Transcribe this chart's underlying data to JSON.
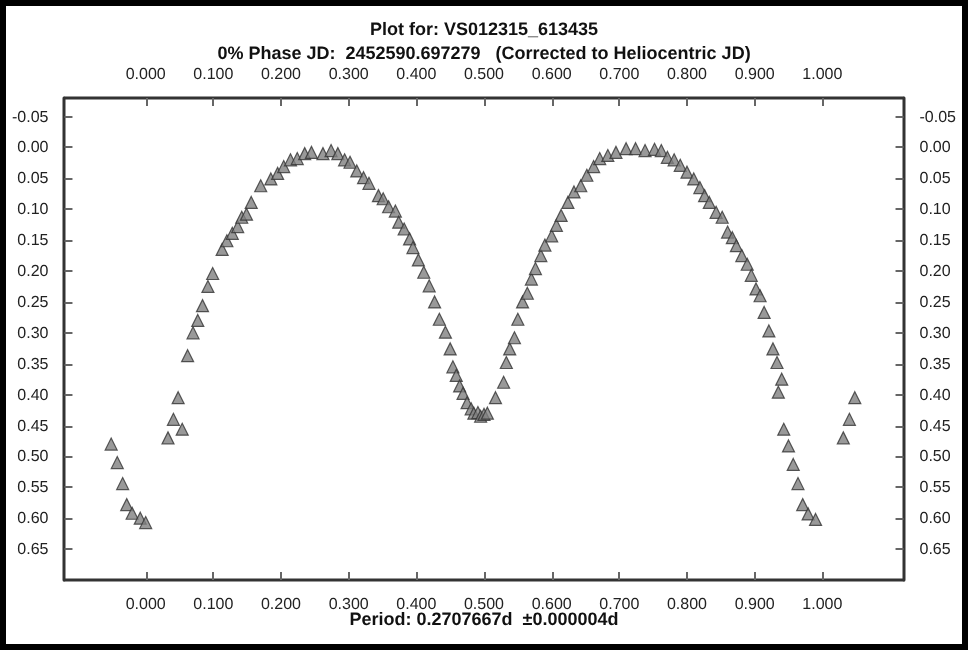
{
  "chart_data": {
    "type": "scatter",
    "title": "Plot for: VS012315_613435",
    "subtitle": "0% Phase JD:  2452590.697279   (Corrected to Heliocentric JD)",
    "annotations": [
      "Period: 0.2707667d  ±0.000004d"
    ],
    "marker": "triangle",
    "series": [
      {
        "color": "#808080",
        "x": [
          -0.051,
          -0.042,
          -0.034,
          -0.028,
          -0.02,
          -0.008,
          0.0,
          0.033,
          0.041,
          0.048,
          0.054,
          0.062,
          0.07,
          0.077,
          0.084,
          0.092,
          0.099,
          0.113,
          0.12,
          0.128,
          0.136,
          0.142,
          0.149,
          0.156,
          0.17,
          0.185,
          0.195,
          0.204,
          0.214,
          0.224,
          0.235,
          0.245,
          0.262,
          0.274,
          0.284,
          0.294,
          0.302,
          0.312,
          0.322,
          0.33,
          0.344,
          0.351,
          0.359,
          0.369,
          0.374,
          0.382,
          0.39,
          0.395,
          0.403,
          0.411,
          0.419,
          0.427,
          0.434,
          0.443,
          0.45,
          0.454,
          0.459,
          0.464,
          0.469,
          0.475,
          0.481,
          0.485,
          0.491,
          0.495,
          0.5,
          0.505,
          0.517,
          0.529,
          0.533,
          0.538,
          0.545,
          0.55,
          0.557,
          0.564,
          0.57,
          0.576,
          0.584,
          0.59,
          0.6,
          0.607,
          0.614,
          0.624,
          0.633,
          0.643,
          0.652,
          0.662,
          0.671,
          0.683,
          0.695,
          0.71,
          0.724,
          0.738,
          0.752,
          0.762,
          0.771,
          0.781,
          0.79,
          0.8,
          0.81,
          0.819,
          0.826,
          0.833,
          0.843,
          0.852,
          0.86,
          0.867,
          0.873,
          0.881,
          0.889,
          0.895,
          0.902,
          0.908,
          0.914,
          0.921,
          0.927,
          0.933,
          0.935,
          0.94,
          0.943,
          0.95,
          0.957,
          0.964,
          0.971,
          0.979,
          0.99,
          1.031,
          1.04,
          1.048
        ],
        "values": [
          0.48,
          0.51,
          0.544,
          0.578,
          0.592,
          0.6,
          0.607,
          0.47,
          0.44,
          0.405,
          0.456,
          0.337,
          0.3,
          0.28,
          0.256,
          0.225,
          0.204,
          0.165,
          0.151,
          0.139,
          0.128,
          0.113,
          0.108,
          0.089,
          0.062,
          0.051,
          0.042,
          0.031,
          0.02,
          0.018,
          0.01,
          0.008,
          0.01,
          0.005,
          0.01,
          0.02,
          0.024,
          0.038,
          0.049,
          0.058,
          0.078,
          0.083,
          0.096,
          0.103,
          0.121,
          0.132,
          0.148,
          0.162,
          0.182,
          0.202,
          0.224,
          0.25,
          0.278,
          0.299,
          0.326,
          0.355,
          0.369,
          0.386,
          0.398,
          0.413,
          0.423,
          0.43,
          0.429,
          0.435,
          0.432,
          0.43,
          0.405,
          0.38,
          0.348,
          0.326,
          0.308,
          0.278,
          0.25,
          0.236,
          0.213,
          0.196,
          0.175,
          0.158,
          0.143,
          0.126,
          0.11,
          0.089,
          0.072,
          0.062,
          0.045,
          0.031,
          0.018,
          0.013,
          0.008,
          0.002,
          0.002,
          0.005,
          0.003,
          0.005,
          0.016,
          0.02,
          0.029,
          0.04,
          0.051,
          0.065,
          0.078,
          0.089,
          0.105,
          0.113,
          0.137,
          0.146,
          0.159,
          0.175,
          0.189,
          0.207,
          0.229,
          0.24,
          0.267,
          0.297,
          0.326,
          0.348,
          0.396,
          0.375,
          0.456,
          0.483,
          0.513,
          0.544,
          0.578,
          0.593,
          0.602,
          0.47,
          0.44,
          0.405
        ]
      }
    ],
    "xlim": [
      -0.12,
      1.12
    ],
    "xticks": [
      {
        "value": 0,
        "label": "0.000"
      },
      {
        "value": 0.1,
        "label": "0.100"
      },
      {
        "value": 0.2,
        "label": "0.200"
      },
      {
        "value": 0.3,
        "label": "0.300"
      },
      {
        "value": 0.4,
        "label": "0.400"
      },
      {
        "value": 0.5,
        "label": "0.500"
      },
      {
        "value": 0.6,
        "label": "0.600"
      },
      {
        "value": 0.7,
        "label": "0.700"
      },
      {
        "value": 0.8,
        "label": "0.800"
      },
      {
        "value": 0.9,
        "label": "0.900"
      },
      {
        "value": 1,
        "label": "1.000"
      }
    ],
    "x2lim": [
      -0.12,
      1.12
    ],
    "x2ticks": [
      {
        "value": 0,
        "label": "0.000"
      },
      {
        "value": 0.1,
        "label": "0.100"
      },
      {
        "value": 0.2,
        "label": "0.200"
      },
      {
        "value": 0.3,
        "label": "0.300"
      },
      {
        "value": 0.4,
        "label": "0.400"
      },
      {
        "value": 0.5,
        "label": "0.500"
      },
      {
        "value": 0.6,
        "label": "0.600"
      },
      {
        "value": 0.7,
        "label": "0.700"
      },
      {
        "value": 0.8,
        "label": "0.800"
      },
      {
        "value": 0.9,
        "label": "0.900"
      },
      {
        "value": 1,
        "label": "1.000"
      }
    ],
    "ylim": [
      0.7,
      -0.08
    ],
    "yticks": [
      -0.05,
      {
        "value": 0,
        "label": "0.00"
      },
      0.05,
      {
        "value": 0.1,
        "label": "0.10"
      },
      0.15,
      {
        "value": 0.2,
        "label": "0.20"
      },
      0.25,
      {
        "value": 0.3,
        "label": "0.30"
      },
      0.35,
      {
        "value": 0.4,
        "label": "0.40"
      },
      0.45,
      {
        "value": 0.5,
        "label": "0.50"
      },
      0.55,
      {
        "value": 0.6,
        "label": "0.60"
      },
      0.65
    ],
    "y2lim": [
      0.7,
      -0.08
    ],
    "y2ticks": [
      -0.05,
      {
        "value": 0,
        "label": "0.00"
      },
      0.05,
      {
        "value": 0.1,
        "label": "0.10"
      },
      0.15,
      {
        "value": 0.2,
        "label": "0.20"
      },
      0.25,
      {
        "value": 0.3,
        "label": "0.30"
      },
      0.35,
      {
        "value": 0.4,
        "label": "0.40"
      },
      0.45,
      {
        "value": 0.5,
        "label": "0.50"
      },
      0.55,
      {
        "value": 0.6,
        "label": "0.60"
      },
      0.65
    ]
  }
}
